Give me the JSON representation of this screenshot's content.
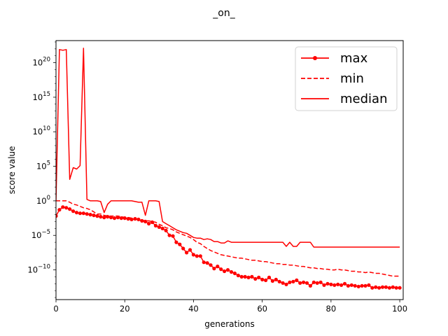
{
  "chart_data": {
    "type": "line",
    "title": "_on_",
    "xlabel": "generations",
    "ylabel": "score value",
    "yscale": "log",
    "xlim": [
      0,
      101
    ],
    "ylim_exp": [
      -14.3,
      23.2
    ],
    "x_ticks": [
      0,
      20,
      40,
      60,
      80,
      100
    ],
    "y_tick_exps": [
      -10,
      -5,
      0,
      5,
      10,
      15,
      20
    ],
    "legend_position": "upper right",
    "color": "#ff0000",
    "series": [
      {
        "name": "max",
        "style": "solid-dots",
        "x": [
          0,
          1,
          2,
          3,
          4,
          5,
          6,
          7,
          8,
          9,
          10,
          11,
          12,
          13,
          14,
          15,
          16,
          17,
          18,
          19,
          20,
          21,
          22,
          23,
          24,
          25,
          26,
          27,
          28,
          29,
          30,
          31,
          32,
          33,
          34,
          35,
          36,
          37,
          38,
          39,
          40,
          41,
          42,
          43,
          44,
          45,
          46,
          47,
          48,
          49,
          50,
          51,
          52,
          53,
          54,
          55,
          56,
          57,
          58,
          59,
          60,
          61,
          62,
          63,
          64,
          65,
          66,
          67,
          68,
          69,
          70,
          71,
          72,
          73,
          74,
          75,
          76,
          77,
          78,
          79,
          80,
          81,
          82,
          83,
          84,
          85,
          86,
          87,
          88,
          89,
          90,
          91,
          92,
          93,
          94,
          95,
          96,
          97,
          98,
          99,
          100
        ],
        "log10_values": [
          -2.2,
          -1.3,
          -0.9,
          -1.0,
          -1.2,
          -1.5,
          -1.7,
          -1.8,
          -1.8,
          -1.9,
          -2.0,
          -2.1,
          -2.2,
          -2.3,
          -2.4,
          -2.3,
          -2.4,
          -2.5,
          -2.4,
          -2.5,
          -2.5,
          -2.6,
          -2.7,
          -2.6,
          -2.7,
          -2.9,
          -3.0,
          -3.3,
          -3.1,
          -3.6,
          -3.8,
          -4.0,
          -4.3,
          -5.0,
          -5.1,
          -6.0,
          -6.3,
          -6.9,
          -7.5,
          -7.1,
          -7.8,
          -8.0,
          -8.0,
          -8.9,
          -9.0,
          -9.3,
          -9.8,
          -9.5,
          -9.9,
          -10.2,
          -10.0,
          -10.3,
          -10.5,
          -10.8,
          -11.0,
          -11.0,
          -11.1,
          -11.0,
          -11.3,
          -11.1,
          -11.4,
          -11.5,
          -11.1,
          -11.6,
          -11.4,
          -11.7,
          -11.9,
          -12.1,
          -11.8,
          -11.7,
          -11.5,
          -11.9,
          -11.8,
          -11.9,
          -12.3,
          -11.8,
          -11.9,
          -11.8,
          -12.2,
          -12.0,
          -12.1,
          -12.2,
          -12.1,
          -12.2,
          -12.0,
          -12.3,
          -12.2,
          -12.3,
          -12.4,
          -12.3,
          -12.3,
          -12.2,
          -12.6,
          -12.5,
          -12.6,
          -12.5,
          -12.5,
          -12.6,
          -12.5,
          -12.6,
          -12.6
        ]
      },
      {
        "name": "min",
        "style": "dashed",
        "x": [
          0,
          1,
          2,
          3,
          4,
          5,
          6,
          7,
          8,
          9,
          10,
          11,
          12,
          13,
          14,
          15,
          16,
          17,
          18,
          19,
          20,
          21,
          22,
          23,
          24,
          25,
          26,
          27,
          28,
          29,
          30,
          31,
          32,
          33,
          34,
          35,
          36,
          37,
          38,
          39,
          40,
          41,
          42,
          43,
          44,
          45,
          46,
          47,
          48,
          49,
          50,
          51,
          52,
          53,
          54,
          55,
          56,
          57,
          58,
          59,
          60,
          61,
          62,
          63,
          64,
          65,
          66,
          67,
          68,
          69,
          70,
          71,
          72,
          73,
          74,
          75,
          76,
          77,
          78,
          79,
          80,
          81,
          82,
          83,
          84,
          85,
          86,
          87,
          88,
          89,
          90,
          91,
          92,
          93,
          94,
          95,
          96,
          97,
          98,
          99,
          100
        ],
        "log10_values": [
          0,
          0,
          0,
          0,
          -0.2,
          -0.5,
          -0.6,
          -0.8,
          -1.0,
          -1.1,
          -1.3,
          -1.6,
          -1.9,
          -1.9,
          -2.1,
          -2.2,
          -2.2,
          -2.2,
          -2.2,
          -2.3,
          -2.4,
          -2.4,
          -2.5,
          -2.6,
          -2.7,
          -2.8,
          -2.9,
          -2.9,
          -3.0,
          -3.1,
          -3.4,
          -3.6,
          -3.9,
          -4.0,
          -4.2,
          -4.5,
          -4.7,
          -4.9,
          -5.1,
          -5.3,
          -5.6,
          -6.0,
          -6.2,
          -6.6,
          -6.9,
          -7.2,
          -7.4,
          -7.6,
          -7.8,
          -7.9,
          -8.0,
          -8.1,
          -8.2,
          -8.3,
          -8.3,
          -8.4,
          -8.5,
          -8.6,
          -8.6,
          -8.7,
          -8.8,
          -8.8,
          -8.9,
          -9.0,
          -9.1,
          -9.1,
          -9.2,
          -9.2,
          -9.3,
          -9.3,
          -9.4,
          -9.5,
          -9.5,
          -9.6,
          -9.7,
          -9.7,
          -9.8,
          -9.8,
          -9.9,
          -9.9,
          -10.0,
          -10.0,
          -9.9,
          -10.0,
          -10.0,
          -10.1,
          -10.2,
          -10.2,
          -10.3,
          -10.3,
          -10.4,
          -10.3,
          -10.4,
          -10.5,
          -10.5,
          -10.6,
          -10.7,
          -10.8,
          -10.9,
          -10.9,
          -10.9
        ]
      },
      {
        "name": "median",
        "style": "solid",
        "x": [
          0,
          1,
          2,
          3,
          4,
          5,
          6,
          7,
          8,
          9,
          10,
          11,
          12,
          13,
          14,
          15,
          16,
          17,
          18,
          19,
          20,
          21,
          22,
          23,
          24,
          25,
          26,
          27,
          28,
          29,
          30,
          31,
          32,
          33,
          34,
          35,
          36,
          37,
          38,
          39,
          40,
          41,
          42,
          43,
          44,
          45,
          46,
          47,
          48,
          49,
          50,
          51,
          52,
          53,
          54,
          55,
          56,
          57,
          58,
          59,
          60,
          61,
          62,
          63,
          64,
          65,
          66,
          67,
          68,
          69,
          70,
          71,
          72,
          73,
          74,
          75,
          76,
          77,
          78,
          79,
          80,
          81,
          82,
          83,
          84,
          85,
          86,
          87,
          88,
          89,
          90,
          91,
          92,
          93,
          94,
          95,
          96,
          97,
          98,
          99,
          100
        ],
        "log10_values": [
          0,
          21.9,
          21.8,
          21.9,
          3.1,
          4.8,
          4.6,
          5.1,
          22.1,
          0.2,
          0,
          0,
          0,
          -0.1,
          -1.7,
          -0.5,
          0,
          0,
          0,
          0,
          0,
          0,
          0,
          -0.1,
          -0.2,
          -0.2,
          -2.1,
          0,
          0,
          0,
          -0.1,
          -3.0,
          -3.3,
          -3.6,
          -3.9,
          -4.2,
          -4.4,
          -4.6,
          -4.7,
          -5.0,
          -5.3,
          -5.4,
          -5.4,
          -5.6,
          -5.5,
          -5.6,
          -5.9,
          -5.9,
          -6.1,
          -6.1,
          -5.8,
          -6.0,
          -6.0,
          -6.0,
          -6.0,
          -6.0,
          -6.0,
          -6.0,
          -6.0,
          -6.0,
          -6.0,
          -6.0,
          -6.0,
          -6.0,
          -6.0,
          -6.0,
          -6.0,
          -6.6,
          -6.0,
          -6.6,
          -6.6,
          -6.0,
          -6.0,
          -6.0,
          -6.0,
          -6.7,
          -6.7,
          -6.7,
          -6.7,
          -6.7,
          -6.7,
          -6.7,
          -6.7,
          -6.7,
          -6.7,
          -6.7,
          -6.7,
          -6.7,
          -6.7,
          -6.7,
          -6.7,
          -6.7,
          -6.7,
          -6.7,
          -6.7,
          -6.7,
          -6.7,
          -6.7,
          -6.7,
          -6.7,
          -6.7
        ]
      }
    ]
  }
}
